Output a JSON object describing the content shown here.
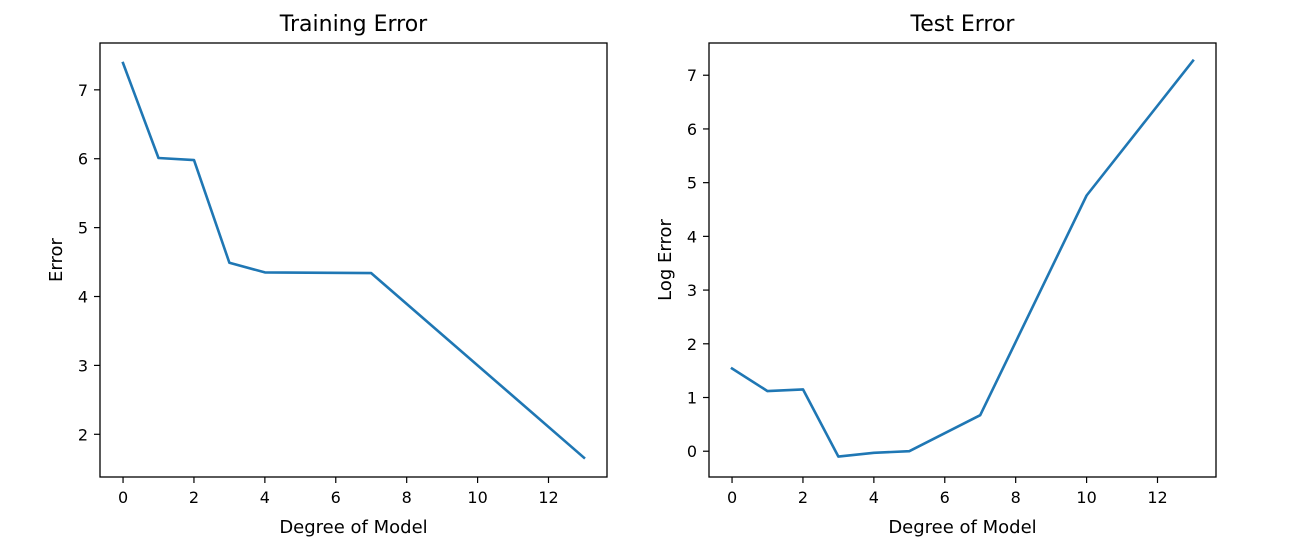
{
  "chart_data": [
    {
      "type": "line",
      "title": "Training Error",
      "xlabel": "Degree of Model",
      "ylabel": "Error",
      "xlim": [
        -0.65,
        13.65
      ],
      "ylim": [
        1.38,
        7.68
      ],
      "xticks": [
        0,
        2,
        4,
        6,
        8,
        10,
        12
      ],
      "yticks": [
        2,
        3,
        4,
        5,
        6,
        7
      ],
      "grid": false,
      "series": [
        {
          "color": "#1f77b4",
          "x": [
            0,
            1,
            2,
            3,
            4,
            7,
            13
          ],
          "y": [
            7.39,
            6.01,
            5.98,
            4.49,
            4.35,
            4.34,
            1.66
          ]
        }
      ]
    },
    {
      "type": "line",
      "title": "Test Error",
      "xlabel": "Degree of Model",
      "ylabel": "Log Error",
      "xlim": [
        -0.65,
        13.65
      ],
      "ylim": [
        -0.48,
        7.6
      ],
      "xticks": [
        0,
        2,
        4,
        6,
        8,
        10,
        12
      ],
      "yticks": [
        0,
        1,
        2,
        3,
        4,
        5,
        6,
        7
      ],
      "grid": false,
      "series": [
        {
          "color": "#1f77b4",
          "x": [
            0,
            1,
            2,
            3,
            4,
            5,
            7,
            10,
            13
          ],
          "y": [
            1.54,
            1.12,
            1.15,
            -0.1,
            -0.03,
            0.0,
            0.67,
            4.76,
            7.27
          ]
        }
      ]
    }
  ]
}
